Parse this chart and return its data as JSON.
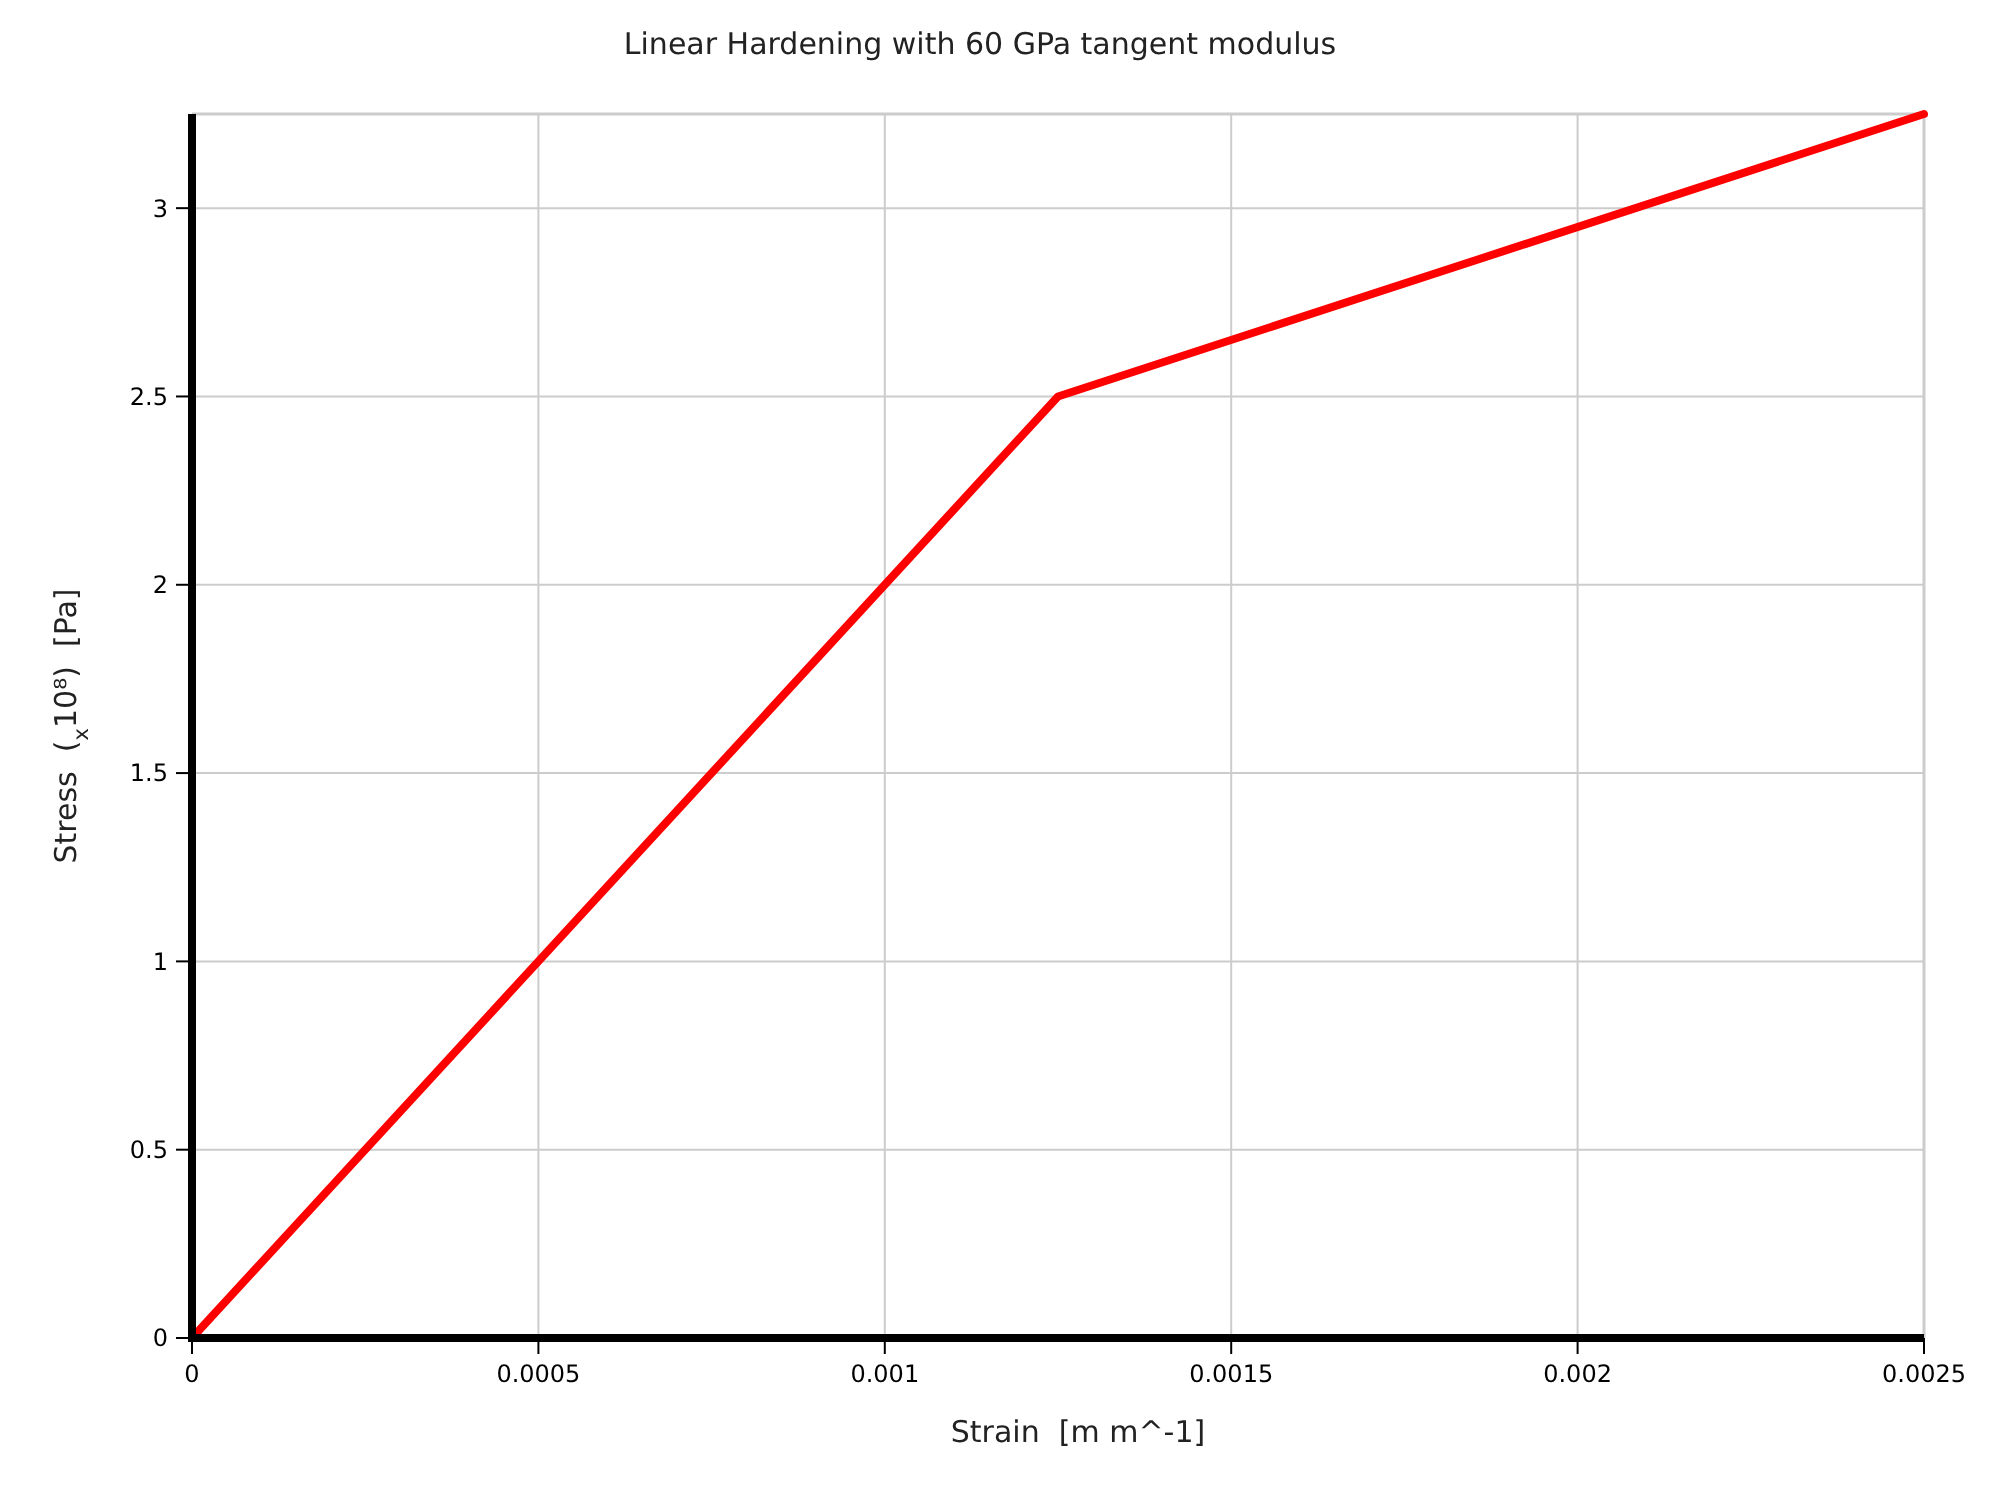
{
  "chart_data": {
    "type": "line",
    "title": "Linear Hardening with 60 GPa tangent modulus",
    "xlabel": "Strain  [m m^-1]",
    "ylabel": "Stress  ($_{x}$10⁸)  [Pa]",
    "x": [
      0,
      0.00125,
      0.0025
    ],
    "series": [
      {
        "color": "#ff0000",
        "values": [
          0,
          2.5,
          3.25
        ]
      }
    ],
    "xlim": [
      0,
      0.0025
    ],
    "xticks": [
      0,
      0.0005,
      0.001,
      0.0015,
      0.002,
      0.0025
    ],
    "ylim": [
      0,
      3.25
    ],
    "yticks": [
      0,
      0.5,
      1,
      1.5,
      2,
      2.5,
      3
    ],
    "grid": true,
    "marker": "none",
    "line_style": "solid"
  }
}
